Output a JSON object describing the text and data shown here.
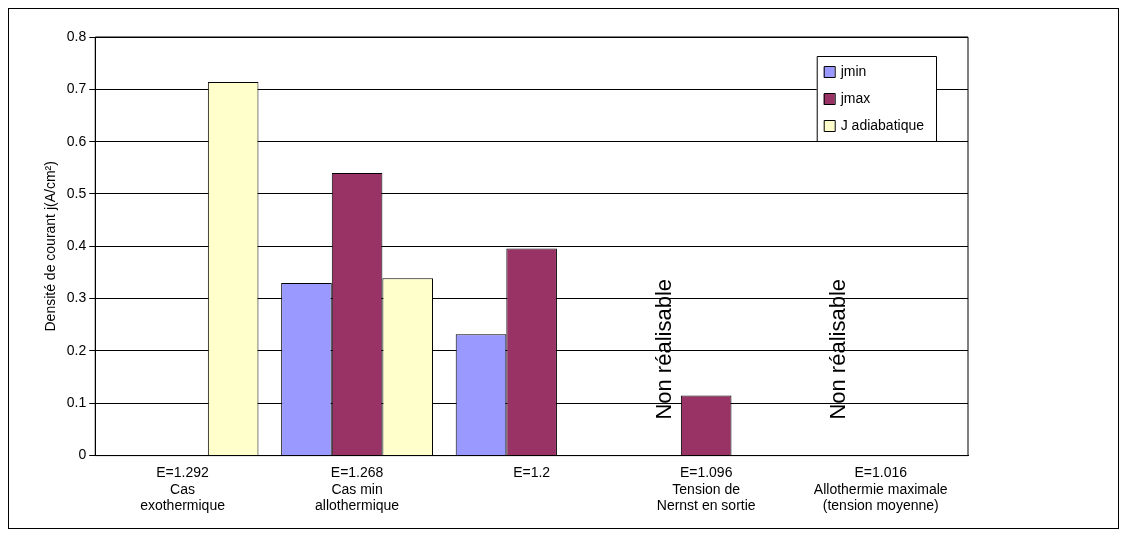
{
  "chart_data": {
    "type": "bar",
    "ylabel": "Densité de courant j(A/cm²)",
    "categories": [
      "E=1.292\nCas\nexothermique",
      "E=1.268\nCas min\nallothermique",
      "E=1.2",
      "E=1.096\nTension de\nNernst en sortie",
      "E=1.016\nAllothermie maximale\n(tension moyenne)"
    ],
    "series": [
      {
        "name": "jmin",
        "color": "#9999ff",
        "values": [
          null,
          0.33,
          0.232,
          null,
          null
        ]
      },
      {
        "name": "jmax",
        "color": "#993366",
        "values": [
          null,
          0.54,
          0.396,
          0.115,
          null
        ]
      },
      {
        "name": "J adiabatique",
        "color": "#ffffcc",
        "values": [
          0.714,
          0.339,
          null,
          null,
          null
        ]
      }
    ],
    "ylim": [
      0,
      0.8
    ],
    "yticks": [
      0,
      0.1,
      0.2,
      0.3,
      0.4,
      0.5,
      0.6,
      0.7,
      0.8
    ],
    "grid": "y",
    "legend": "top right",
    "annotations": [
      "Non réalisable",
      "Non réalisable"
    ]
  }
}
